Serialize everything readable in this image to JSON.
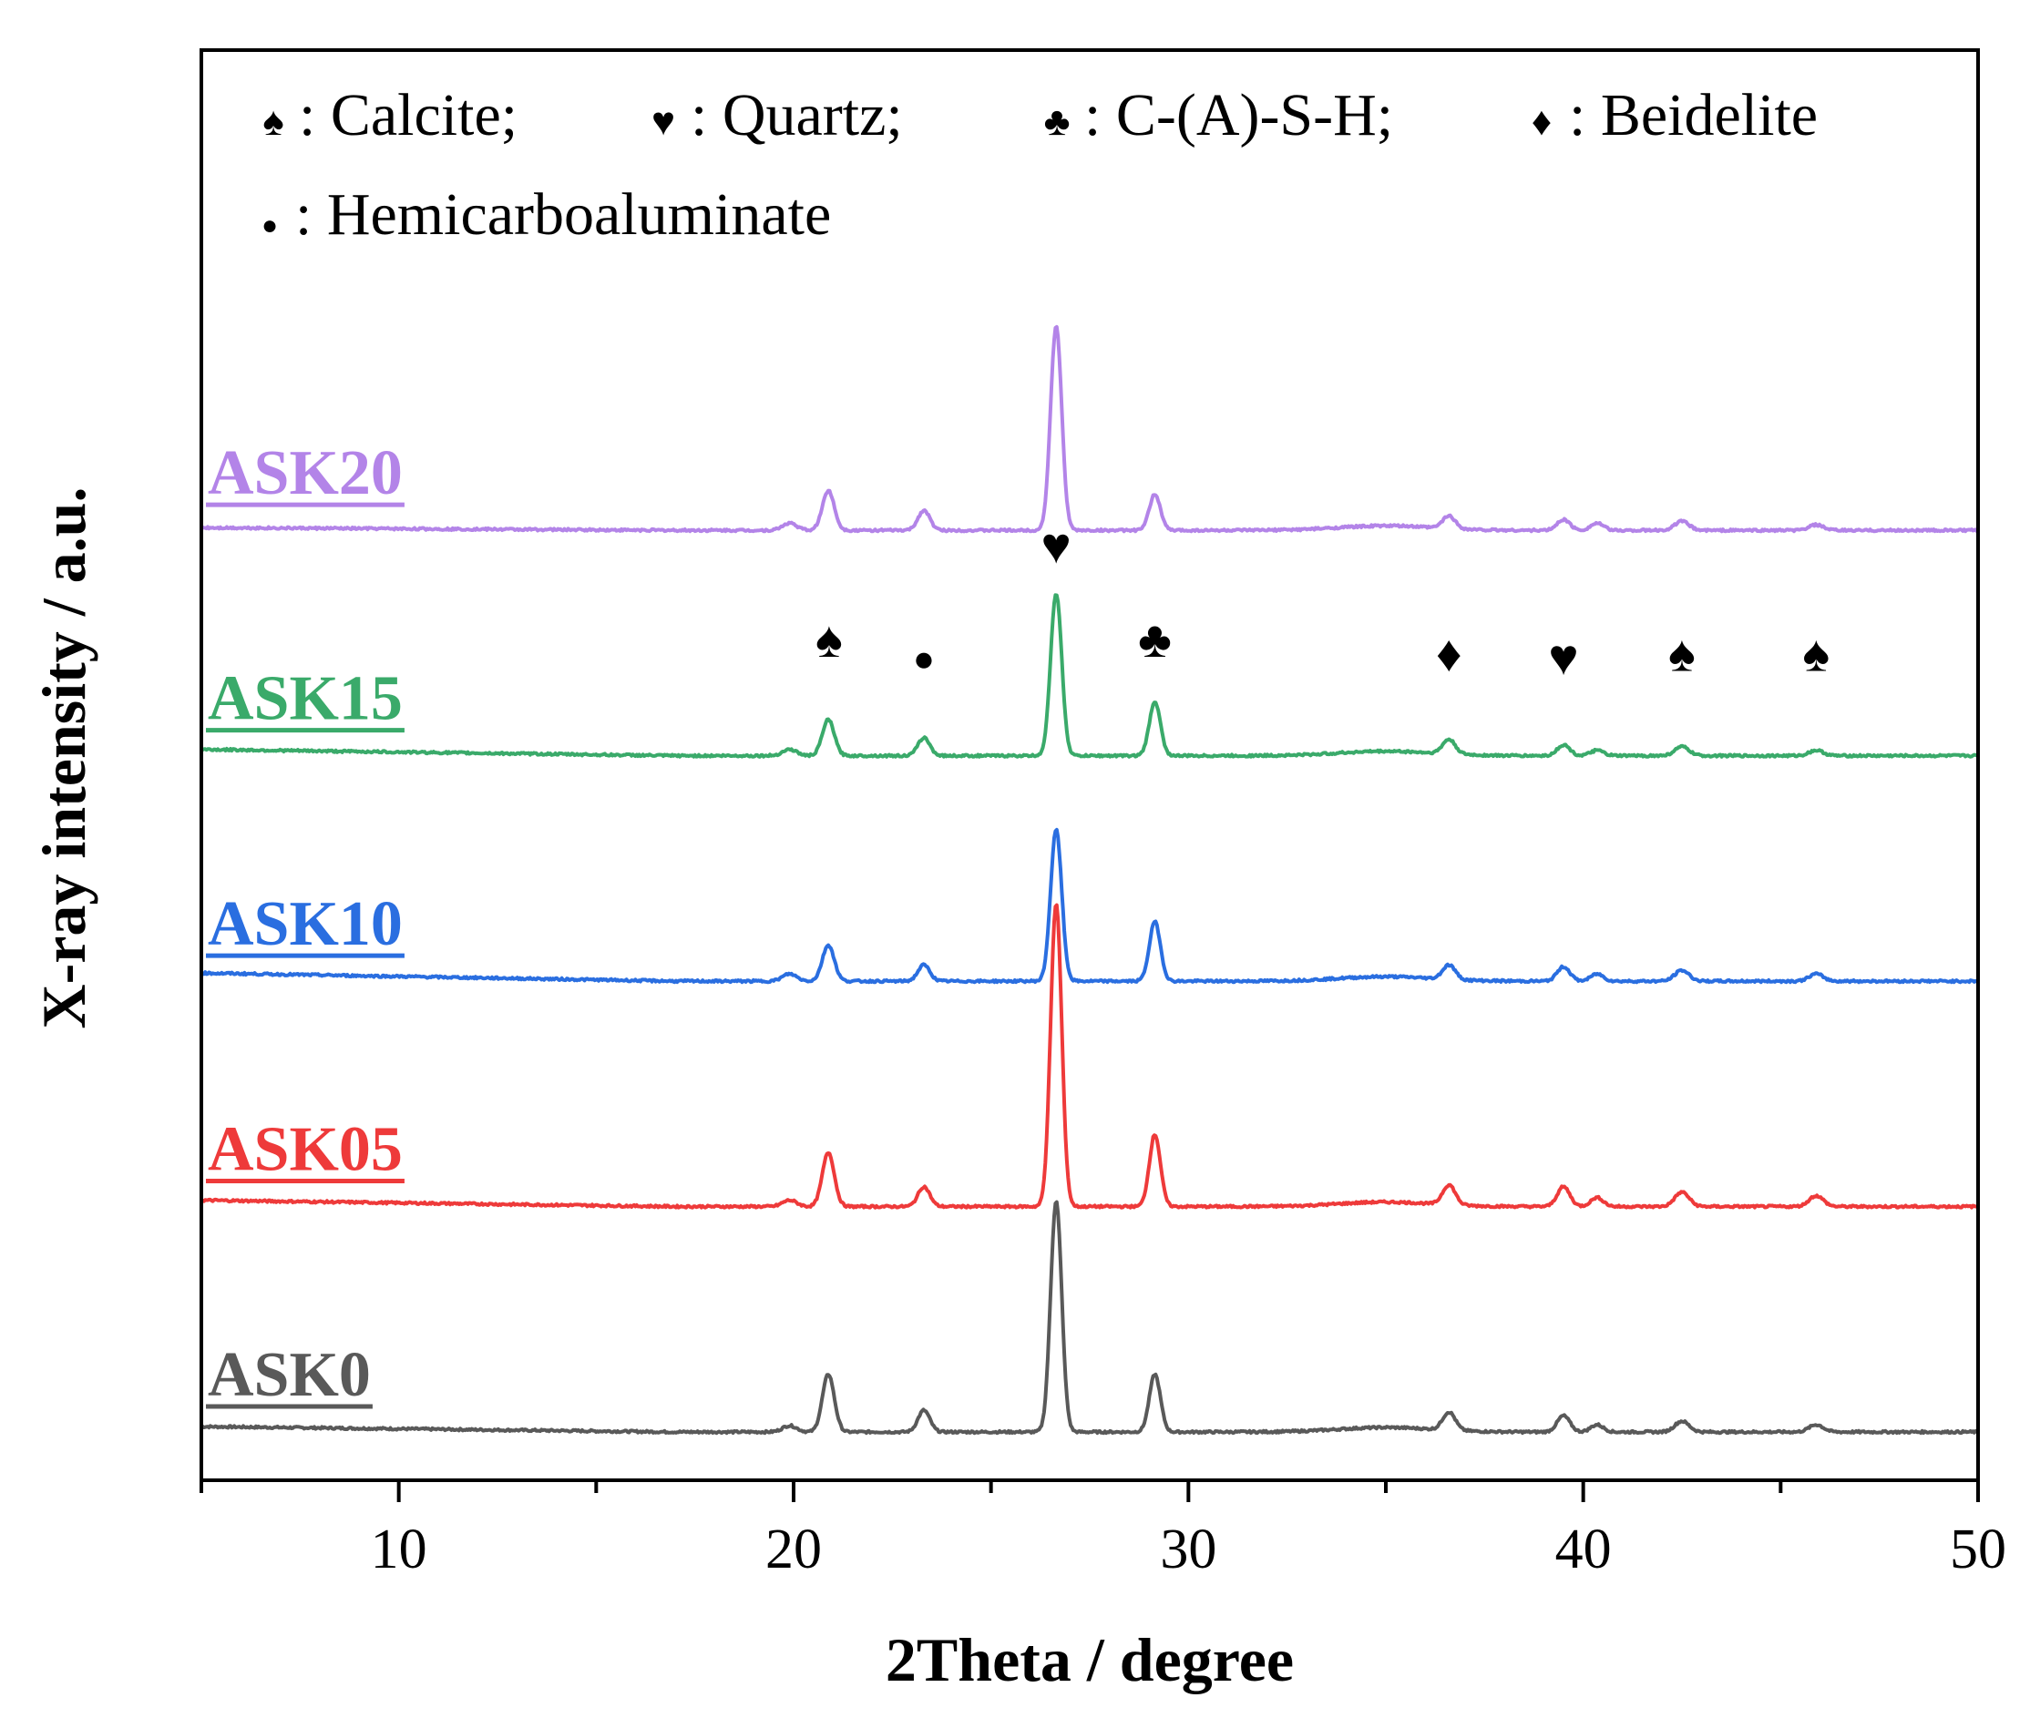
{
  "chart_data": {
    "type": "line",
    "xlabel": "2Theta / degree",
    "ylabel": "X-ray intensity / a.u.",
    "xlim": [
      5,
      50
    ],
    "ylim": [
      0,
      54
    ],
    "x_ticks": [
      10,
      20,
      30,
      40,
      50
    ],
    "x_tick_labels": [
      "10",
      "20",
      "30",
      "40",
      "50"
    ],
    "legend": {
      "placement": "top-left inside",
      "entries": [
        {
          "symbol": "♠",
          "text": ": Calcite;"
        },
        {
          "symbol": "♥",
          "text": ": Quartz;"
        },
        {
          "symbol": "♣",
          "text": ": C-(A)-S-H;"
        },
        {
          "symbol": "♦",
          "text": ": Beidelite"
        },
        {
          "symbol": "●",
          "text": ": Hemicarboaluminate"
        }
      ]
    },
    "peak_markers": [
      {
        "symbol": "♠",
        "x": 20.9,
        "y": 43.0
      },
      {
        "symbol": "●",
        "x": 23.3,
        "y": 42.2
      },
      {
        "symbol": "♥",
        "x": 26.65,
        "y": 48.2
      },
      {
        "symbol": "♣",
        "x": 29.15,
        "y": 43.0
      },
      {
        "symbol": "♦",
        "x": 36.6,
        "y": 42.2
      },
      {
        "symbol": "♥",
        "x": 39.5,
        "y": 42.0
      },
      {
        "symbol": "♠",
        "x": 42.5,
        "y": 42.2
      },
      {
        "symbol": "♠",
        "x": 45.9,
        "y": 42.2
      }
    ],
    "peaks": [
      {
        "phase": "background hump",
        "x": 35.0,
        "width": 1.2
      },
      {
        "phase": "minor",
        "x": 19.9,
        "width": 0.18
      },
      {
        "phase": "calcite",
        "x": 20.88,
        "width": 0.15
      },
      {
        "phase": "hemicarboaluminate",
        "x": 23.3,
        "width": 0.15
      },
      {
        "phase": "quartz",
        "x": 26.65,
        "width": 0.14
      },
      {
        "phase": "C-(A)-S-H",
        "x": 29.15,
        "width": 0.14
      },
      {
        "phase": "beidelite",
        "x": 36.6,
        "width": 0.16
      },
      {
        "phase": "quartz",
        "x": 39.5,
        "width": 0.16
      },
      {
        "phase": "minor",
        "x": 40.35,
        "width": 0.16
      },
      {
        "phase": "calcite",
        "x": 42.5,
        "width": 0.18
      },
      {
        "phase": "calcite",
        "x": 45.9,
        "width": 0.18
      }
    ],
    "series": [
      {
        "name": "ASK0",
        "color": "#595959",
        "baseline": 0,
        "start": 0.3,
        "peak_heights": [
          0.25,
          0.35,
          3.2,
          1.2,
          12.8,
          3.2,
          1.0,
          0.9,
          0.4,
          0.6,
          0.4
        ]
      },
      {
        "name": "ASK05",
        "color": "#ee3a3a",
        "baseline": 12.5,
        "start": 12.85,
        "peak_heights": [
          0.25,
          0.35,
          3.0,
          1.1,
          16.8,
          4.0,
          1.1,
          1.1,
          0.5,
          0.8,
          0.6
        ]
      },
      {
        "name": "ASK10",
        "color": "#2a6ee0",
        "baseline": 25.0,
        "start": 25.45,
        "peak_heights": [
          0.25,
          0.4,
          2.0,
          0.9,
          8.4,
          3.3,
          0.8,
          0.8,
          0.4,
          0.6,
          0.4
        ]
      },
      {
        "name": "ASK15",
        "color": "#3aaa6a",
        "baseline": 37.5,
        "start": 37.85,
        "peak_heights": [
          0.25,
          0.35,
          2.0,
          1.0,
          9.0,
          3.0,
          0.8,
          0.6,
          0.3,
          0.5,
          0.3
        ]
      },
      {
        "name": "ASK20",
        "color": "#b384e8",
        "baseline": 50.0,
        "start": 50.15,
        "peak_heights": [
          0.25,
          0.4,
          2.2,
          1.1,
          11.3,
          2.0,
          0.7,
          0.6,
          0.4,
          0.5,
          0.3
        ]
      }
    ]
  }
}
